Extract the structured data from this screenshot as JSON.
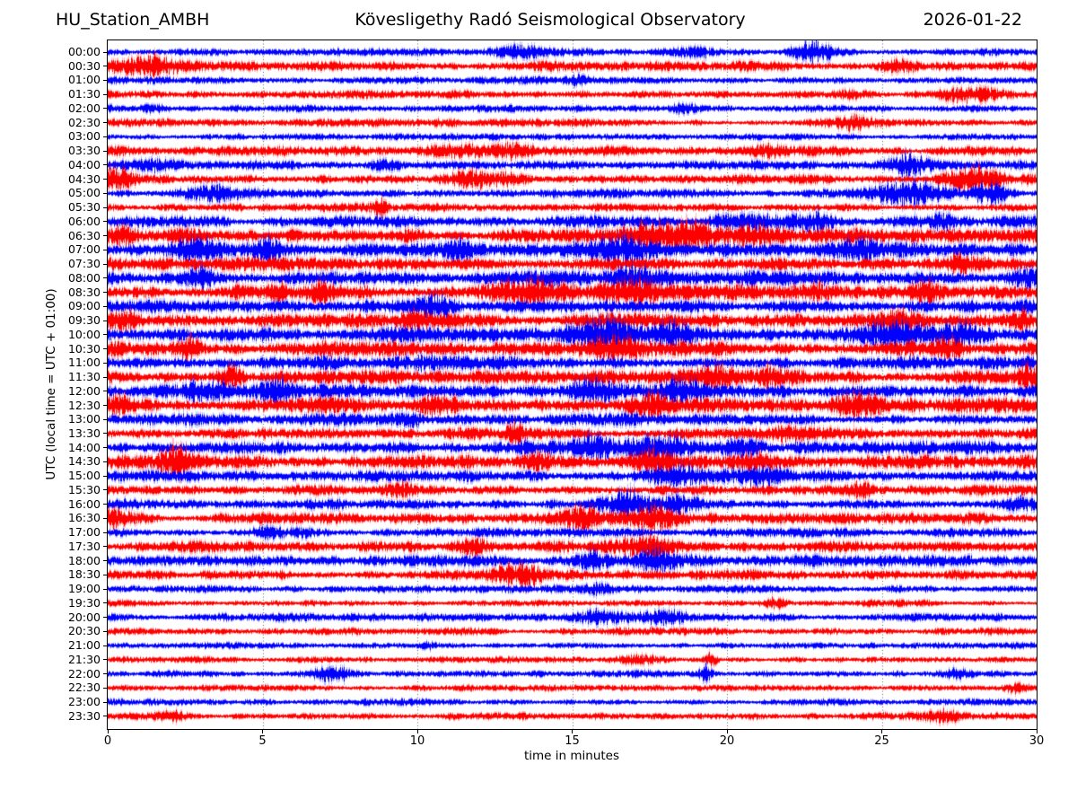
{
  "header": {
    "station": "HU_Station_AMBH",
    "observatory": "Kövesligethy Radó Seismological Observatory",
    "date": "2026-01-22"
  },
  "axes": {
    "xlabel": "time in minutes",
    "ylabel": "UTC (local time = UTC + 01:00)",
    "xlim": [
      0,
      30
    ],
    "xticks": [
      0,
      5,
      10,
      15,
      20,
      25,
      30
    ],
    "grid_minutes": [
      5,
      10,
      15,
      20,
      25
    ],
    "grid_color": "#444444",
    "frame_color": "#000000",
    "tick_color": "#000000"
  },
  "chart_data": {
    "type": "line",
    "subtype": "helicorder-dayplot",
    "x_units": "minutes",
    "minutes_per_row": 30,
    "rows_count": 48,
    "trace_colors": [
      "#0000ff",
      "#ff0000"
    ],
    "rows": [
      {
        "label": "00:00",
        "color": "#0000ff",
        "base": 2.8,
        "bursts": [
          [
            13.5,
            0.8,
            4
          ],
          [
            19.0,
            0.6,
            4
          ],
          [
            22.8,
            0.5,
            8
          ]
        ]
      },
      {
        "label": "00:30",
        "color": "#ff0000",
        "base": 3.4,
        "bursts": [
          [
            1.2,
            0.8,
            7
          ],
          [
            25.6,
            0.4,
            6
          ]
        ]
      },
      {
        "label": "01:00",
        "color": "#0000ff",
        "base": 2.6,
        "bursts": [
          [
            15.3,
            0.3,
            3
          ]
        ]
      },
      {
        "label": "01:30",
        "color": "#ff0000",
        "base": 2.9,
        "bursts": [
          [
            24.0,
            0.3,
            3
          ],
          [
            27.8,
            0.7,
            5
          ]
        ]
      },
      {
        "label": "02:00",
        "color": "#0000ff",
        "base": 2.6,
        "bursts": [
          [
            1.5,
            0.3,
            3
          ],
          [
            18.7,
            0.4,
            4
          ]
        ]
      },
      {
        "label": "02:30",
        "color": "#ff0000",
        "base": 2.8,
        "bursts": [
          [
            24.0,
            0.4,
            5
          ]
        ]
      },
      {
        "label": "03:00",
        "color": "#0000ff",
        "base": 2.3,
        "bursts": []
      },
      {
        "label": "03:30",
        "color": "#ff0000",
        "base": 3.4,
        "bursts": [
          [
            11.3,
            0.6,
            6
          ],
          [
            13.2,
            0.6,
            6
          ],
          [
            21.3,
            0.5,
            4
          ]
        ]
      },
      {
        "label": "04:00",
        "color": "#0000ff",
        "base": 3.4,
        "bursts": [
          [
            1.5,
            0.7,
            5
          ],
          [
            9.0,
            0.4,
            4
          ],
          [
            25.8,
            0.5,
            8
          ]
        ]
      },
      {
        "label": "04:30",
        "color": "#ff0000",
        "base": 3.6,
        "bursts": [
          [
            0.3,
            0.4,
            8
          ],
          [
            11.6,
            0.5,
            7
          ],
          [
            12.8,
            0.4,
            6
          ],
          [
            28.0,
            0.6,
            10
          ]
        ]
      },
      {
        "label": "05:00",
        "color": "#0000ff",
        "base": 3.6,
        "bursts": [
          [
            3.2,
            0.6,
            6
          ],
          [
            26.0,
            0.8,
            9
          ],
          [
            28.4,
            0.5,
            9
          ]
        ]
      },
      {
        "label": "05:30",
        "color": "#ff0000",
        "base": 3.0,
        "bursts": [
          [
            8.8,
            0.15,
            7
          ]
        ]
      },
      {
        "label": "06:00",
        "color": "#0000ff",
        "base": 4.2,
        "bursts": [
          [
            20.5,
            0.6,
            7
          ],
          [
            22.5,
            0.7,
            7
          ],
          [
            27.0,
            0.4,
            5
          ]
        ]
      },
      {
        "label": "06:30",
        "color": "#ff0000",
        "base": 5.2,
        "bursts": [
          [
            0.5,
            0.3,
            7
          ],
          [
            17.5,
            0.8,
            9
          ],
          [
            19.0,
            0.6,
            9
          ],
          [
            20.8,
            0.5,
            8
          ]
        ]
      },
      {
        "label": "07:00",
        "color": "#0000ff",
        "base": 5.2,
        "bursts": [
          [
            2.8,
            0.5,
            8
          ],
          [
            5.3,
            0.3,
            7
          ],
          [
            11.5,
            0.4,
            7
          ],
          [
            16.5,
            0.7,
            9
          ],
          [
            24.0,
            0.5,
            6
          ]
        ]
      },
      {
        "label": "07:30",
        "color": "#ff0000",
        "base": 5.0,
        "bursts": [
          [
            27.5,
            0.2,
            8
          ]
        ]
      },
      {
        "label": "08:00",
        "color": "#0000ff",
        "base": 5.2,
        "bursts": [
          [
            3.0,
            0.4,
            8
          ],
          [
            17.0,
            0.6,
            8
          ],
          [
            29.7,
            0.3,
            6
          ]
        ]
      },
      {
        "label": "08:30",
        "color": "#ff0000",
        "base": 5.4,
        "bursts": [
          [
            5.5,
            0.2,
            8
          ],
          [
            6.8,
            0.2,
            7
          ],
          [
            13.5,
            0.8,
            9
          ],
          [
            17.0,
            0.6,
            8
          ],
          [
            23.0,
            0.3,
            7
          ],
          [
            26.5,
            0.3,
            7
          ]
        ]
      },
      {
        "label": "09:00",
        "color": "#0000ff",
        "base": 4.6,
        "bursts": [
          [
            10.6,
            0.4,
            9
          ]
        ]
      },
      {
        "label": "09:30",
        "color": "#ff0000",
        "base": 5.2,
        "bursts": [
          [
            0.5,
            0.4,
            8
          ],
          [
            10.0,
            0.4,
            6
          ],
          [
            25.5,
            0.6,
            9
          ],
          [
            29.5,
            0.3,
            7
          ]
        ]
      },
      {
        "label": "10:00",
        "color": "#0000ff",
        "base": 5.2,
        "bursts": [
          [
            16.0,
            0.8,
            9
          ],
          [
            18.3,
            0.5,
            8
          ],
          [
            25.5,
            0.9,
            9
          ],
          [
            27.5,
            0.5,
            8
          ]
        ]
      },
      {
        "label": "10:30",
        "color": "#ff0000",
        "base": 5.2,
        "bursts": [
          [
            2.6,
            0.3,
            8
          ],
          [
            16.3,
            0.5,
            9
          ],
          [
            27.2,
            0.4,
            8
          ]
        ]
      },
      {
        "label": "11:00",
        "color": "#0000ff",
        "base": 4.6,
        "bursts": [
          [
            10.0,
            0.5,
            5
          ]
        ]
      },
      {
        "label": "11:30",
        "color": "#ff0000",
        "base": 5.2,
        "bursts": [
          [
            3.9,
            0.3,
            7
          ],
          [
            19.5,
            0.5,
            7
          ],
          [
            21.5,
            0.4,
            7
          ],
          [
            29.8,
            0.3,
            9
          ]
        ]
      },
      {
        "label": "12:00",
        "color": "#0000ff",
        "base": 5.2,
        "bursts": [
          [
            3.0,
            0.5,
            7
          ],
          [
            5.6,
            0.4,
            7
          ],
          [
            15.6,
            0.5,
            8
          ],
          [
            18.5,
            0.4,
            7
          ]
        ]
      },
      {
        "label": "12:30",
        "color": "#ff0000",
        "base": 5.2,
        "bursts": [
          [
            0.3,
            0.3,
            7
          ],
          [
            10.5,
            0.4,
            7
          ],
          [
            17.5,
            0.5,
            7
          ],
          [
            24.3,
            0.5,
            9
          ]
        ]
      },
      {
        "label": "13:00",
        "color": "#0000ff",
        "base": 4.2,
        "bursts": [
          [
            9.8,
            0.3,
            4
          ]
        ]
      },
      {
        "label": "13:30",
        "color": "#ff0000",
        "base": 4.0,
        "bursts": [
          [
            13.2,
            0.2,
            7
          ],
          [
            22.0,
            0.5,
            4
          ]
        ]
      },
      {
        "label": "14:00",
        "color": "#0000ff",
        "base": 4.6,
        "bursts": [
          [
            15.8,
            0.5,
            9
          ],
          [
            17.8,
            0.6,
            9
          ],
          [
            20.5,
            0.5,
            6
          ]
        ]
      },
      {
        "label": "14:30",
        "color": "#ff0000",
        "base": 4.6,
        "bursts": [
          [
            2.2,
            0.4,
            10
          ],
          [
            14.0,
            0.4,
            6
          ],
          [
            17.6,
            0.5,
            8
          ],
          [
            21.0,
            0.5,
            7
          ]
        ]
      },
      {
        "label": "15:00",
        "color": "#0000ff",
        "base": 4.0,
        "bursts": [
          [
            18.5,
            0.8,
            6
          ],
          [
            21.0,
            0.7,
            6
          ]
        ]
      },
      {
        "label": "15:30",
        "color": "#ff0000",
        "base": 3.6,
        "bursts": [
          [
            9.4,
            0.3,
            5
          ],
          [
            24.3,
            0.3,
            5
          ]
        ]
      },
      {
        "label": "16:00",
        "color": "#0000ff",
        "base": 4.0,
        "bursts": [
          [
            16.8,
            0.6,
            9
          ],
          [
            18.5,
            0.4,
            7
          ],
          [
            29.6,
            0.3,
            6
          ]
        ]
      },
      {
        "label": "16:30",
        "color": "#ff0000",
        "base": 4.2,
        "bursts": [
          [
            0.2,
            0.3,
            7
          ],
          [
            15.2,
            0.5,
            9
          ],
          [
            17.7,
            0.5,
            9
          ]
        ]
      },
      {
        "label": "17:00",
        "color": "#0000ff",
        "base": 3.0,
        "bursts": [
          [
            5.3,
            0.5,
            5
          ],
          [
            6.3,
            0.2,
            4
          ]
        ]
      },
      {
        "label": "17:30",
        "color": "#ff0000",
        "base": 4.0,
        "bursts": [
          [
            11.8,
            0.3,
            6
          ],
          [
            17.5,
            0.8,
            8
          ]
        ]
      },
      {
        "label": "18:00",
        "color": "#0000ff",
        "base": 4.0,
        "bursts": [
          [
            15.8,
            0.4,
            8
          ],
          [
            17.8,
            0.6,
            9
          ]
        ]
      },
      {
        "label": "18:30",
        "color": "#ff0000",
        "base": 3.6,
        "bursts": [
          [
            13.3,
            0.6,
            8
          ]
        ]
      },
      {
        "label": "19:00",
        "color": "#0000ff",
        "base": 2.8,
        "bursts": [
          [
            15.8,
            0.3,
            4
          ]
        ]
      },
      {
        "label": "19:30",
        "color": "#ff0000",
        "base": 2.5,
        "bursts": [
          [
            21.5,
            0.3,
            4
          ]
        ]
      },
      {
        "label": "20:00",
        "color": "#0000ff",
        "base": 2.8,
        "bursts": [
          [
            16.0,
            0.5,
            6
          ],
          [
            18.0,
            0.6,
            6
          ]
        ]
      },
      {
        "label": "20:30",
        "color": "#ff0000",
        "base": 2.5,
        "bursts": []
      },
      {
        "label": "21:00",
        "color": "#0000ff",
        "base": 2.3,
        "bursts": [
          [
            10.3,
            0.2,
            3
          ]
        ]
      },
      {
        "label": "21:30",
        "color": "#ff0000",
        "base": 2.3,
        "bursts": [
          [
            17.2,
            0.4,
            4
          ],
          [
            19.5,
            0.15,
            5
          ]
        ]
      },
      {
        "label": "22:00",
        "color": "#0000ff",
        "base": 2.6,
        "bursts": [
          [
            7.2,
            0.5,
            7
          ],
          [
            19.3,
            0.12,
            8
          ],
          [
            27.5,
            0.3,
            4
          ]
        ]
      },
      {
        "label": "22:30",
        "color": "#ff0000",
        "base": 2.3,
        "bursts": [
          [
            29.4,
            0.3,
            4
          ]
        ]
      },
      {
        "label": "23:00",
        "color": "#0000ff",
        "base": 2.3,
        "bursts": []
      },
      {
        "label": "23:30",
        "color": "#ff0000",
        "base": 2.6,
        "bursts": [
          [
            2.0,
            0.4,
            4
          ],
          [
            27.0,
            0.4,
            4
          ]
        ]
      }
    ]
  }
}
